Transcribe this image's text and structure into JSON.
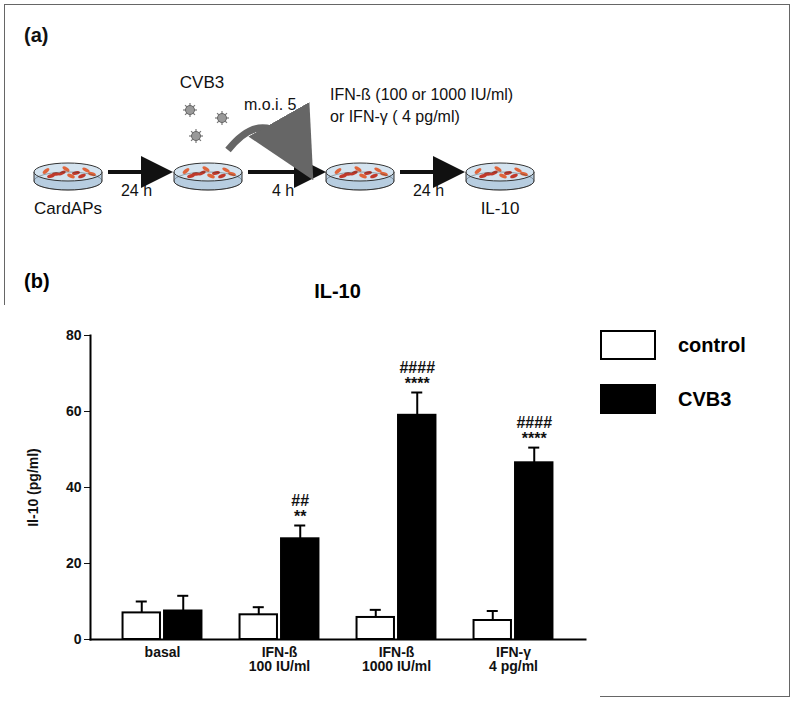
{
  "diagram": {
    "panel_label": "(a)",
    "steps": [
      {
        "label": "CardAPs"
      },
      {
        "label": "CVB3",
        "sublabel": "m.o.i. 5"
      },
      {
        "label": "IFN-ß (100 or 1000 IU/ml)",
        "sublabel": "or IFN-γ ( 4 pg/ml)"
      },
      {
        "label": "IL-10"
      }
    ],
    "intervals": [
      "24 h",
      "4 h",
      "24 h"
    ]
  },
  "chart_data": {
    "type": "bar",
    "panel_label": "(b)",
    "title": "IL-10",
    "y_label": "Il-10 (pg/ml)",
    "categories": [
      "basal",
      "IFN-ß\n100 IU/ml",
      "IFN-ß\n1000 IU/ml",
      "IFN-γ\n4 pg/ml"
    ],
    "series": [
      {
        "name": "control",
        "color": "#ffffff",
        "values": [
          7,
          6.5,
          5.8,
          5
        ],
        "errors": [
          3,
          2,
          2,
          2.5
        ]
      },
      {
        "name": "CVB3",
        "color": "#000000",
        "values": [
          7.5,
          26.5,
          59,
          46.5
        ],
        "errors": [
          4,
          3.5,
          6,
          4
        ],
        "significance": [
          null,
          "##\n**",
          "####\n****",
          "####\n****"
        ]
      }
    ],
    "ylim": [
      0,
      80
    ],
    "yticks": [
      0,
      20,
      40,
      60,
      80
    ],
    "grid": false,
    "legend": "right"
  }
}
